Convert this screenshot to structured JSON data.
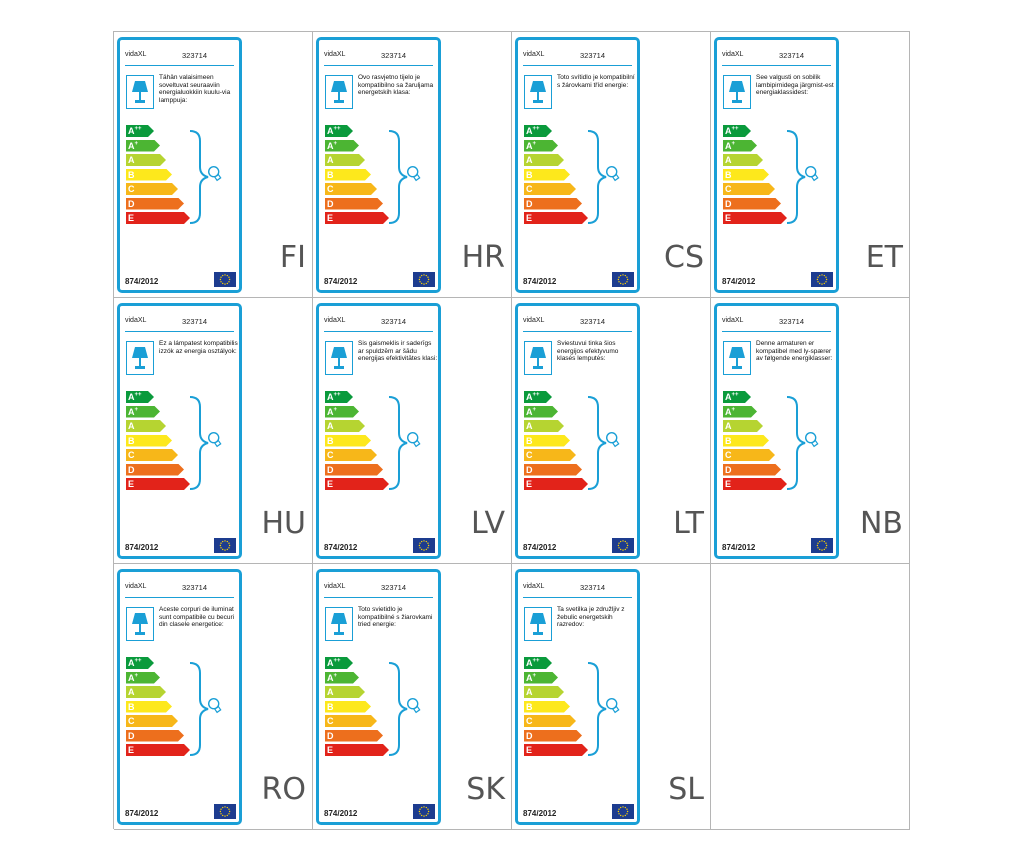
{
  "labels": [
    {
      "brand": "vidaXL",
      "model": "323714",
      "text": "Tähän valaisimeen soveltuvat seuraaviin energialuokkiin kuulu-via lamppuja:",
      "regulation": "874/2012",
      "lang": "FI"
    },
    {
      "brand": "vidaXL",
      "model": "323714",
      "text": "Ovo rasvjetno tijelo je kompatibilno sa žaruljama energetskih klasa:",
      "regulation": "874/2012",
      "lang": "HR"
    },
    {
      "brand": "vidaXL",
      "model": "323714",
      "text": "Toto svítidlo je kompatibilní s žárovkami tříd energie:",
      "regulation": "874/2012",
      "lang": "CS"
    },
    {
      "brand": "vidaXL",
      "model": "323714",
      "text": "See valgusti on sobilik lambipirnidega järgmist-est energiaklassidest:",
      "regulation": "874/2012",
      "lang": "ET"
    },
    {
      "brand": "vidaXL",
      "model": "323714",
      "text": "Ez a lámpatest kompatibilis izzók az energia osztályok:",
      "regulation": "874/2012",
      "lang": "HU"
    },
    {
      "brand": "vidaXL",
      "model": "323714",
      "text": "Šis gaismeklis ir saderīgs ar spuldzēm ar šādu energijas efektivitātes klasi:",
      "regulation": "874/2012",
      "lang": "LV"
    },
    {
      "brand": "vidaXL",
      "model": "323714",
      "text": "Šviestuvui tinka šios energijos efektyvumo klasės lemputės:",
      "regulation": "874/2012",
      "lang": "LT"
    },
    {
      "brand": "vidaXL",
      "model": "323714",
      "text": "Denne armaturen er kompatibel med ly-spærer av følgende energiklasser:",
      "regulation": "874/2012",
      "lang": "NB"
    },
    {
      "brand": "vidaXL",
      "model": "323714",
      "text": "Aceste corpuri de iluminat sunt compatibile cu becuri din clasele energetice:",
      "regulation": "874/2012",
      "lang": "RO"
    },
    {
      "brand": "vidaXL",
      "model": "323714",
      "text": "Toto svietidlo je kompatibilné s žiarovkami tried energie:",
      "regulation": "874/2012",
      "lang": "SK"
    },
    {
      "brand": "vidaXL",
      "model": "323714",
      "text": "Ta svetilka je združljiv z žebulic energetskih razredov:",
      "regulation": "874/2012",
      "lang": "SL"
    }
  ],
  "energy_classes": [
    {
      "letter": "A",
      "sup": "++",
      "color": "#0a9a3c"
    },
    {
      "letter": "A",
      "sup": "+",
      "color": "#4cb533"
    },
    {
      "letter": "A",
      "sup": "",
      "color": "#b6d431"
    },
    {
      "letter": "B",
      "sup": "",
      "color": "#fde81c"
    },
    {
      "letter": "C",
      "sup": "",
      "color": "#f7b719"
    },
    {
      "letter": "D",
      "sup": "",
      "color": "#ed6f1d"
    },
    {
      "letter": "E",
      "sup": "",
      "color": "#e2231a"
    }
  ],
  "colors": {
    "frame": "#1a9fd6",
    "grid": "#b5b5b5",
    "eu_flag": "#1d3c8f",
    "eu_stars": "#ffd400"
  }
}
